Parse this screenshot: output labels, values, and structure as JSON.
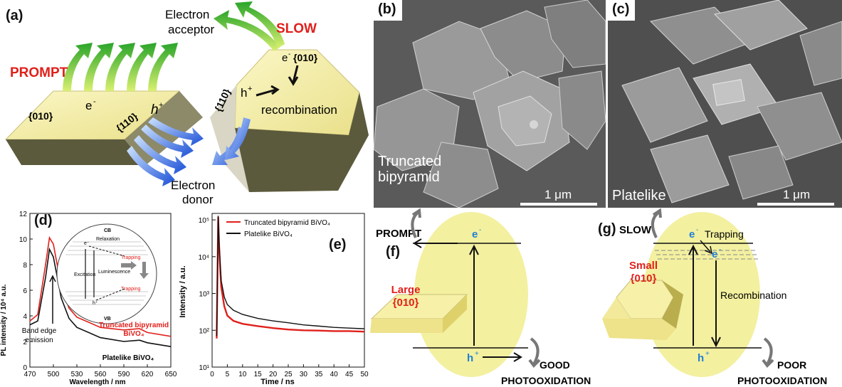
{
  "panel_a": {
    "label": "(a)",
    "prompt": "PROMPT",
    "slow": "SLOW",
    "electron_acceptor_1": "Electron",
    "electron_acceptor_2": "acceptor",
    "electron_donor_1": "Electron",
    "electron_donor_2": "donor",
    "facet_010_left": "{010}",
    "facet_110_left": "{110}",
    "e_left": "e",
    "h_left": "h",
    "facet_010_right": "{010}",
    "facet_110_right": "{110}",
    "e_right": "e",
    "h_right": "h",
    "recombination": "recombination"
  },
  "panel_b": {
    "label": "(b)",
    "caption_1": "Truncated",
    "caption_2": "bipyramid",
    "scale": "1 μm"
  },
  "panel_c": {
    "label": "(c)",
    "caption": "Platelike",
    "scale": "1 μm"
  },
  "panel_d": {
    "label": "(d)",
    "ylabel": "PL intensity / 10⁴ a.u.",
    "xlabel": "Wavelength / nm",
    "band_edge_1": "Band edge",
    "band_edge_2": "emission",
    "series_red_1": "Truncated bipyramid",
    "series_red_2": "BiVO₄",
    "series_black": "Platelike BiVO₄",
    "inset": {
      "cb": "CB",
      "vb": "VB",
      "relaxation": "Relaxation",
      "trapping_top": "Trapping",
      "trapping_bottom": "Trapping",
      "excitation": "Excitation",
      "luminescence": "Luminescence",
      "e": "e⁻",
      "h": "h⁺"
    }
  },
  "panel_e": {
    "label": "(e)",
    "ylabel": "Intensity / a.u.",
    "xlabel": "Time / ns",
    "legend_red": "Truncated bipyramid BiVO₄",
    "legend_black": "Platelike BiVO₄"
  },
  "panel_f": {
    "label": "(f)",
    "prompt": "PROMPT",
    "e": "e",
    "h": "h",
    "large_1": "Large",
    "large_2": "{010}",
    "good_1": "GOOD",
    "good_2": "PHOTOOXIDATION"
  },
  "panel_g": {
    "label": "(g)",
    "slow": "SLOW",
    "e_top": "e",
    "trapping": "Trapping",
    "e_trap": "e",
    "small_1": "Small",
    "small_2": "{010}",
    "recombination": "Recombination",
    "h": "h",
    "poor_1": "POOR",
    "poor_2": "PHOTOOXIDATION"
  },
  "colors": {
    "accent_red": "#e0201b",
    "crystal_top": "#f6f0a8",
    "crystal_side": "#6e6a4a",
    "blue_label": "#1e7fd6",
    "ellipse": "#f3f0a0"
  },
  "chart_data": [
    {
      "type": "line",
      "panel": "(d)",
      "x": [
        470,
        480,
        490,
        495,
        500,
        510,
        520,
        530,
        560,
        590,
        610,
        620,
        650
      ],
      "series": [
        {
          "name": "Truncated bipyramid BiVO₄",
          "color": "#e0201b",
          "values": [
            3.6,
            4.1,
            8.0,
            10.1,
            9.6,
            6.3,
            4.6,
            3.9,
            3.1,
            2.9,
            3.0,
            2.7,
            2.4
          ]
        },
        {
          "name": "Platelike BiVO₄",
          "color": "#111111",
          "values": [
            3.3,
            3.6,
            7.0,
            9.2,
            8.6,
            5.4,
            3.8,
            3.1,
            2.3,
            2.0,
            2.1,
            1.9,
            1.6
          ]
        }
      ],
      "xlabel": "Wavelength / nm",
      "ylabel": "PL intensity / 10⁴ a.u.",
      "xlim": [
        470,
        650
      ],
      "ylim": [
        0,
        12
      ],
      "xticks": [
        470,
        500,
        530,
        560,
        590,
        620,
        650
      ],
      "yticks": [
        0,
        2,
        4,
        6,
        8,
        10,
        12
      ]
    },
    {
      "type": "line",
      "panel": "(e)",
      "scale_y": "log",
      "x": [
        1.5,
        2,
        2.3,
        2.7,
        3,
        4,
        5,
        7,
        10,
        15,
        20,
        25,
        30,
        35,
        40,
        45,
        50
      ],
      "series": [
        {
          "name": "Truncated bipyramid BiVO₄",
          "color": "#e0201b",
          "values": [
            60,
            120000,
            20000,
            4000,
            1500,
            450,
            250,
            180,
            150,
            130,
            115,
            105,
            100,
            98,
            95,
            95,
            92
          ]
        },
        {
          "name": "Platelike BiVO₄",
          "color": "#111111",
          "values": [
            70,
            130000,
            25000,
            5500,
            2200,
            800,
            500,
            350,
            270,
            210,
            180,
            160,
            140,
            130,
            120,
            115,
            110
          ]
        }
      ],
      "xlabel": "Time / ns",
      "ylabel": "Intensity / a.u.",
      "xlim": [
        0,
        50
      ],
      "ylim": [
        10,
        150000
      ],
      "xticks": [
        0,
        5,
        10,
        15,
        20,
        25,
        30,
        35,
        40,
        45,
        50
      ],
      "yticks": [
        "10¹",
        "10²",
        "10³",
        "10⁴",
        "10⁵"
      ]
    }
  ]
}
